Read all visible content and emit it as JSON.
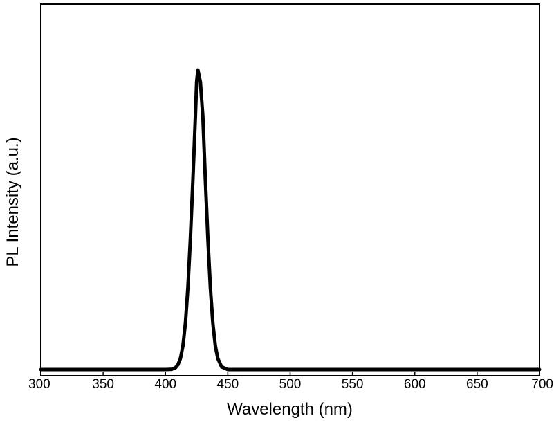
{
  "chart_data": {
    "type": "line",
    "title": "",
    "xlabel": "Wavelength (nm)",
    "ylabel": "PL Intensity (a.u.)",
    "xlim": [
      300,
      700
    ],
    "ylim": [
      0,
      1.1
    ],
    "x_ticks": [
      300,
      350,
      400,
      450,
      500,
      550,
      600,
      650,
      700
    ],
    "x_tick_labels": [
      "300",
      "350",
      "400",
      "450",
      "500",
      "550",
      "600",
      "650",
      "700"
    ],
    "y_ticks_shown": false,
    "grid": false,
    "legend": "none",
    "series": [
      {
        "color": "#000000",
        "x": [
          300,
          350,
          400,
          405,
          408,
          410,
          412,
          414,
          416,
          418,
          420,
          422,
          424,
          425,
          426,
          428,
          430,
          432,
          434,
          436,
          438,
          440,
          442,
          445,
          450,
          500,
          550,
          600,
          650,
          700
        ],
        "y": [
          0,
          0,
          0,
          0.001,
          0.006,
          0.016,
          0.037,
          0.079,
          0.155,
          0.274,
          0.439,
          0.633,
          0.845,
          0.96,
          1.0,
          0.96,
          0.845,
          0.633,
          0.439,
          0.274,
          0.155,
          0.079,
          0.037,
          0.009,
          0.0,
          0,
          0,
          0,
          0,
          0
        ]
      }
    ]
  }
}
